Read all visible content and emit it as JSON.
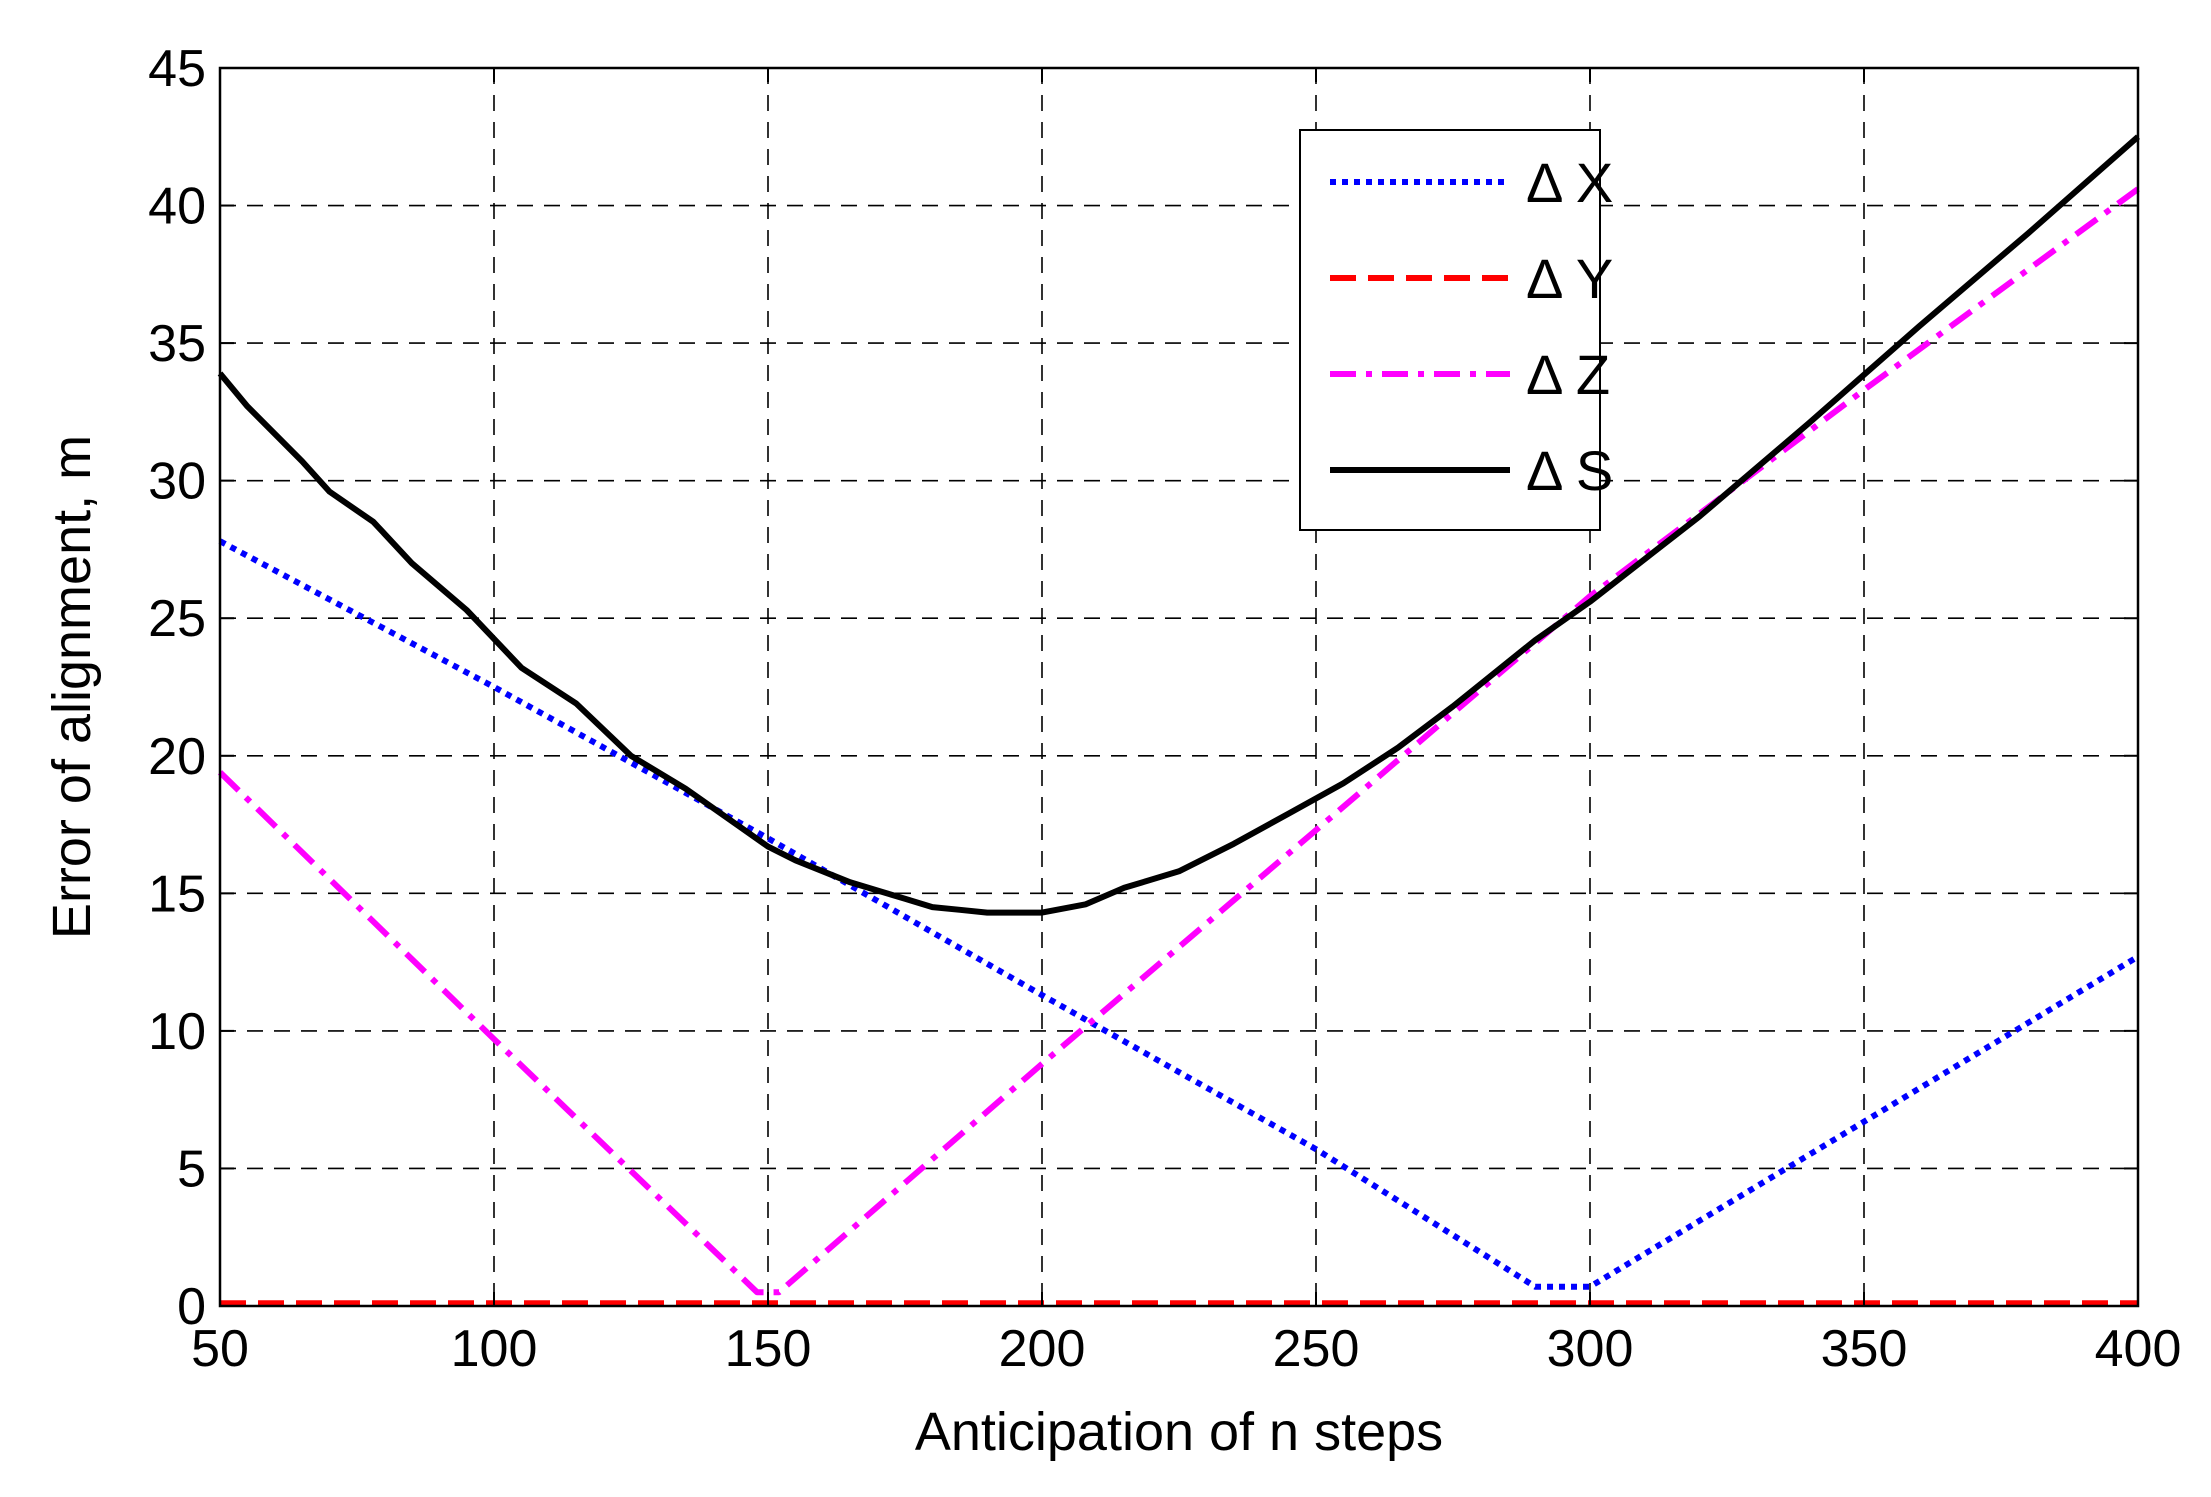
{
  "chart_data": {
    "type": "line",
    "title": "",
    "xlabel": "Anticipation of n steps",
    "ylabel": "Error of alignment, m",
    "xlim": [
      50,
      400
    ],
    "ylim": [
      0,
      45
    ],
    "xticks": [
      50,
      100,
      150,
      200,
      250,
      300,
      350,
      400
    ],
    "yticks": [
      0,
      5,
      10,
      15,
      20,
      25,
      30,
      35,
      40,
      45
    ],
    "grid": true,
    "legend_position": "top-right",
    "series": [
      {
        "name": "Δ X",
        "color": "#0000ff",
        "style": "dotted",
        "x": [
          50,
          100,
          150,
          200,
          250,
          290,
          300,
          350,
          400
        ],
        "y": [
          27.8,
          22.5,
          17.0,
          11.3,
          5.7,
          0.7,
          0.7,
          6.7,
          12.7
        ]
      },
      {
        "name": "Δ Y",
        "color": "#ff0000",
        "style": "dashed",
        "x": [
          50,
          400
        ],
        "y": [
          0.1,
          0.1
        ]
      },
      {
        "name": "Δ Z",
        "color": "#ff00ff",
        "style": "dashdot",
        "x": [
          50,
          100,
          148,
          152,
          200,
          250,
          300,
          350,
          400
        ],
        "y": [
          19.4,
          9.7,
          0.5,
          0.5,
          8.8,
          17.3,
          25.8,
          33.3,
          40.6
        ]
      },
      {
        "name": "Δ S",
        "color": "#000000",
        "style": "solid",
        "x": [
          50,
          55,
          65,
          70,
          78,
          85,
          95,
          105,
          115,
          125,
          135,
          145,
          150,
          155,
          165,
          175,
          180,
          185,
          190,
          195,
          200,
          208,
          215,
          225,
          235,
          245,
          255,
          265,
          275,
          290,
          300,
          320,
          340,
          360,
          380,
          400
        ],
        "y": [
          33.9,
          32.7,
          30.7,
          29.6,
          28.5,
          27.0,
          25.3,
          23.2,
          21.9,
          20.0,
          18.8,
          17.4,
          16.7,
          16.2,
          15.4,
          14.8,
          14.5,
          14.4,
          14.3,
          14.3,
          14.3,
          14.6,
          15.2,
          15.8,
          16.8,
          17.9,
          19.0,
          20.3,
          21.8,
          24.2,
          25.6,
          28.7,
          32.1,
          35.6,
          39.0,
          42.5
        ]
      }
    ]
  }
}
